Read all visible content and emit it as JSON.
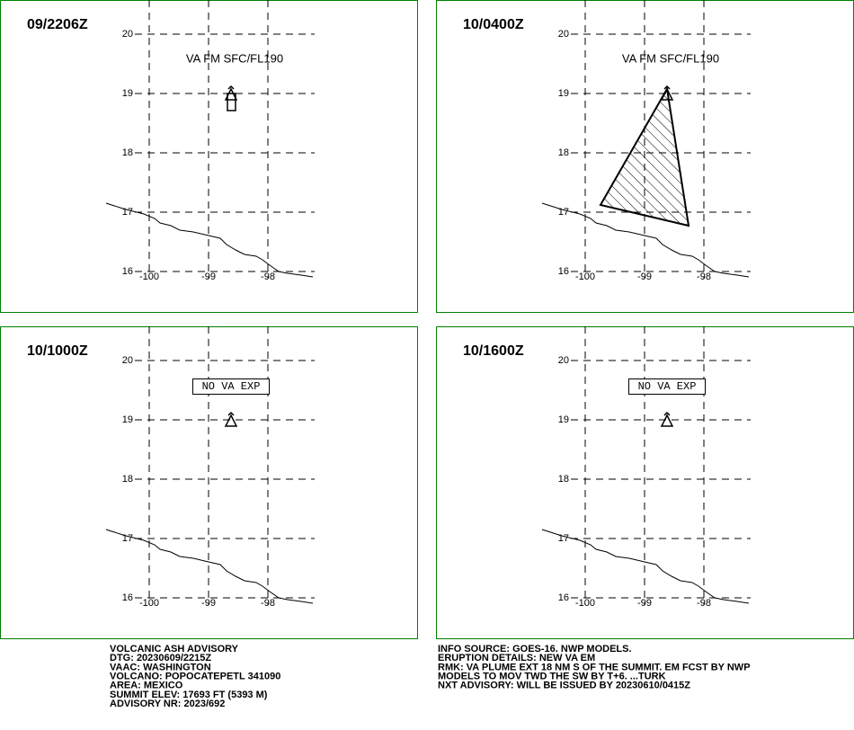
{
  "panels": [
    {
      "time": "09/2206Z",
      "label": "VA FM SFC/FL190"
    },
    {
      "time": "10/0400Z",
      "label": "VA FM SFC/FL190"
    },
    {
      "time": "10/1000Z",
      "label": "NO VA EXP"
    },
    {
      "time": "10/1600Z",
      "label": "NO VA EXP"
    }
  ],
  "lat_ticks": [
    "20",
    "19",
    "18",
    "17",
    "16"
  ],
  "lon_ticks": [
    "-100",
    "-99",
    "-98"
  ],
  "advisory_left": [
    "VOLCANIC ASH ADVISORY",
    "DTG: 20230609/2215Z",
    "VAAC: WASHINGTON",
    "VOLCANO: POPOCATEPETL 341090",
    "AREA: MEXICO",
    "SUMMIT ELEV: 17693 FT (5393 M)",
    "ADVISORY NR: 2023/692"
  ],
  "advisory_right": [
    "INFO SOURCE: GOES-16. NWP MODELS.",
    "ERUPTION DETAILS: NEW VA EM",
    "RMK: VA PLUME EXT 18 NM S OF THE SUMMIT. EM FCST BY NWP",
    "MODELS TO MOV TWD THE SW BY T+6. ...TURK",
    "NXT ADVISORY: WILL BE ISSUED BY 20230610/0415Z"
  ]
}
